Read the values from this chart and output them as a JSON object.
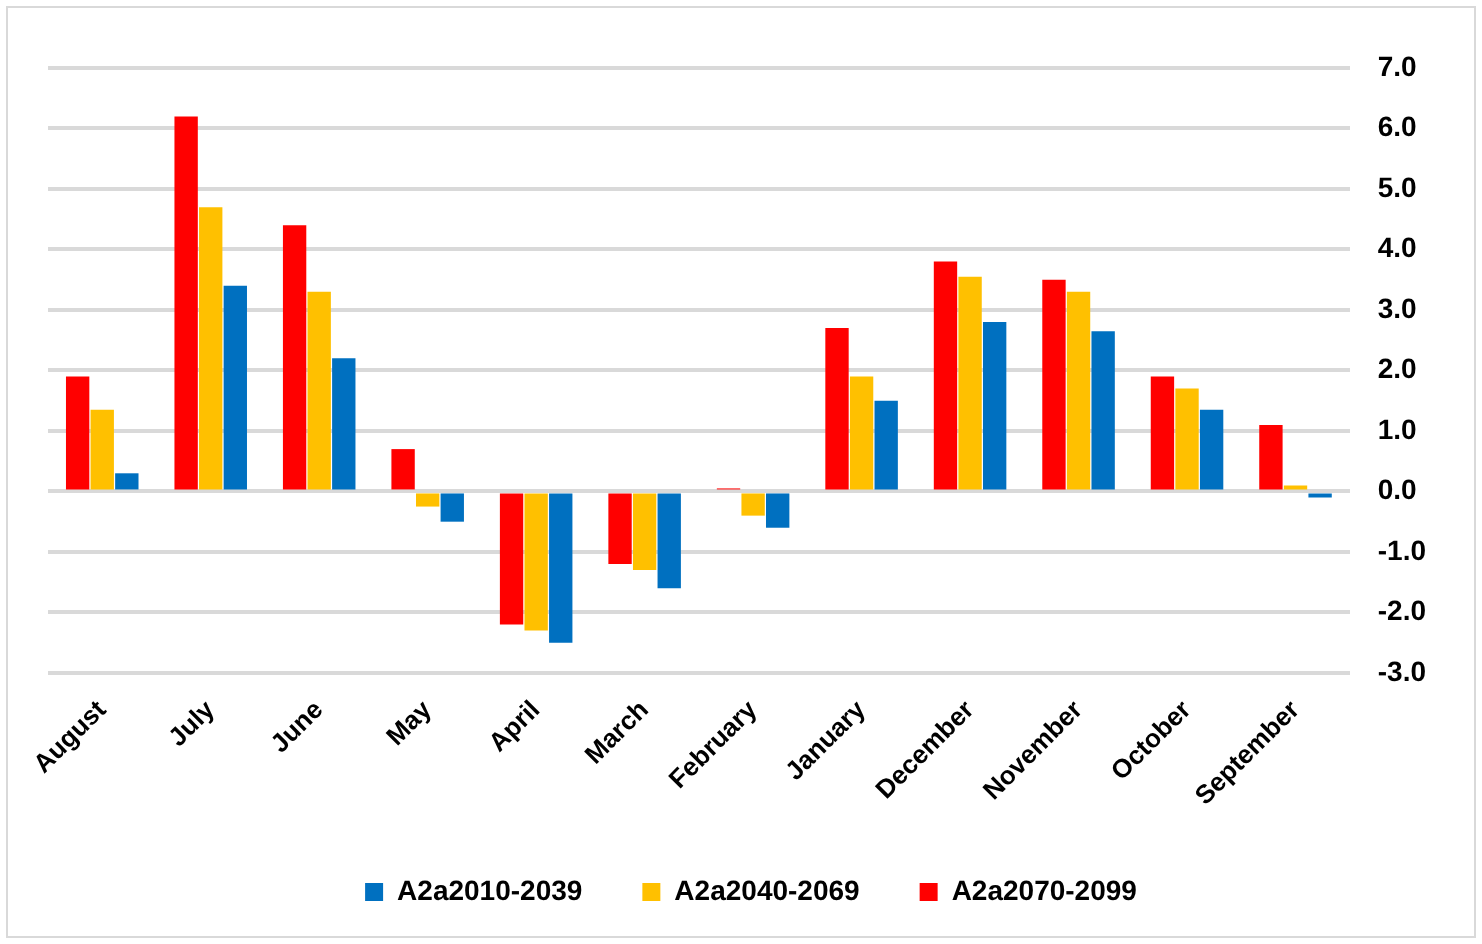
{
  "chart_data": {
    "type": "bar",
    "categories": [
      "August",
      "July",
      "June",
      "May",
      "April",
      "March",
      "February",
      "January",
      "December",
      "November",
      "October",
      "September"
    ],
    "series": [
      {
        "name": "A2a2070-2099",
        "color": "#ff0000",
        "values": [
          1.9,
          6.2,
          4.4,
          0.7,
          -2.2,
          -1.2,
          0.05,
          2.7,
          3.8,
          3.5,
          1.9,
          1.1
        ]
      },
      {
        "name": "A2a2040-2069",
        "color": "#ffc000",
        "values": [
          1.35,
          4.7,
          3.3,
          -0.25,
          -2.3,
          -1.3,
          -0.4,
          1.9,
          3.55,
          3.3,
          1.7,
          0.1
        ]
      },
      {
        "name": "A2a2010-2039",
        "color": "#0070c0",
        "values": [
          0.3,
          3.4,
          2.2,
          -0.5,
          -2.5,
          -1.6,
          -0.6,
          1.5,
          2.8,
          2.65,
          1.35,
          -0.1
        ]
      }
    ],
    "ylim": [
      -3,
      7
    ],
    "yticks": [
      {
        "value": -3,
        "label": "-3.0"
      },
      {
        "value": -2,
        "label": "-2.0"
      },
      {
        "value": -1,
        "label": "-1.0"
      },
      {
        "value": 0,
        "label": "0.0"
      },
      {
        "value": 1,
        "label": "1.0"
      },
      {
        "value": 2,
        "label": "2.0"
      },
      {
        "value": 3,
        "label": "3.0"
      },
      {
        "value": 4,
        "label": "4.0"
      },
      {
        "value": 5,
        "label": "5.0"
      },
      {
        "value": 6,
        "label": "6.0"
      },
      {
        "value": 7,
        "label": "7.0"
      }
    ],
    "grid": "y",
    "legend": "bottom"
  }
}
